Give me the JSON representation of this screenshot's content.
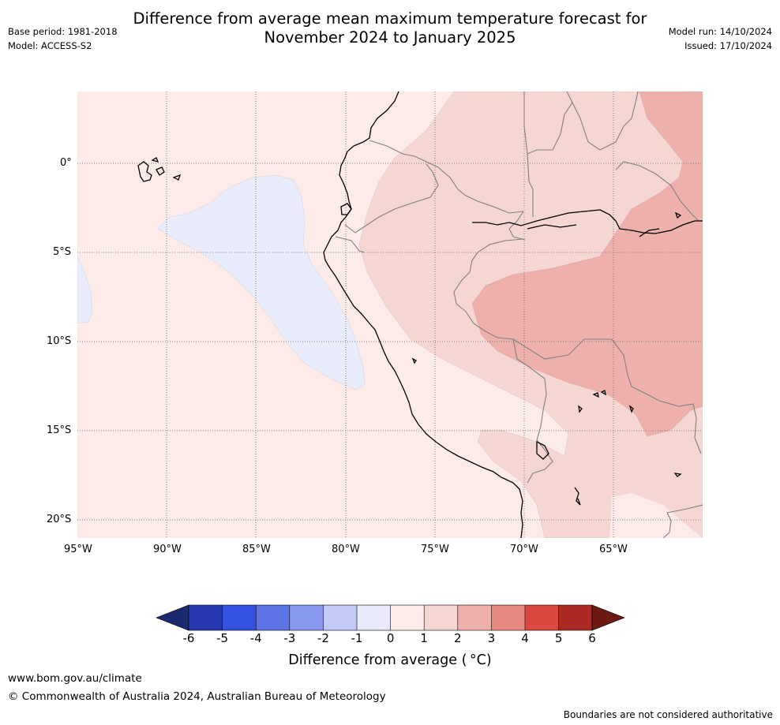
{
  "header": {
    "title_line1": "Difference from average mean maximum temperature forecast for",
    "title_line2": "November 2024 to January 2025",
    "base_period": "Base period: 1981-2018",
    "model": "Model: ACCESS-S2",
    "model_run": "Model run: 14/10/2024",
    "issued": "Issued: 17/10/2024"
  },
  "map": {
    "lat_labels": [
      "0°",
      "5°S",
      "10°S",
      "15°S",
      "20°S"
    ],
    "lon_labels": [
      "95°W",
      "90°W",
      "85°W",
      "80°W",
      "75°W",
      "70°W",
      "65°W"
    ],
    "colors": {
      "cat_-1_0": "#e8ecfb",
      "cat_0_1": "#fcebe9",
      "cat_1_2": "#f6d6d3",
      "cat_2_3": "#eeb0ab"
    }
  },
  "colorbar": {
    "ticks": [
      "-6",
      "-5",
      "-4",
      "-3",
      "-2",
      "-1",
      "0",
      "1",
      "2",
      "3",
      "4",
      "5",
      "6"
    ],
    "colors": [
      "#1b2a6e",
      "#2639b0",
      "#3452e0",
      "#5c74e6",
      "#8898ee",
      "#c2c9f5",
      "#e8ebfb",
      "#fcebe9",
      "#f6d6d3",
      "#eeb0ab",
      "#e88a80",
      "#db4a3e",
      "#ab2a23",
      "#6e1a14"
    ],
    "label": "Difference from average ( °C)"
  },
  "footer": {
    "website": "www.bom.gov.au/climate",
    "copyright": "© Commonwealth of Australia 2024, Australian Bureau of Meteorology",
    "disclaimer": "Boundaries are not considered authoritative"
  }
}
